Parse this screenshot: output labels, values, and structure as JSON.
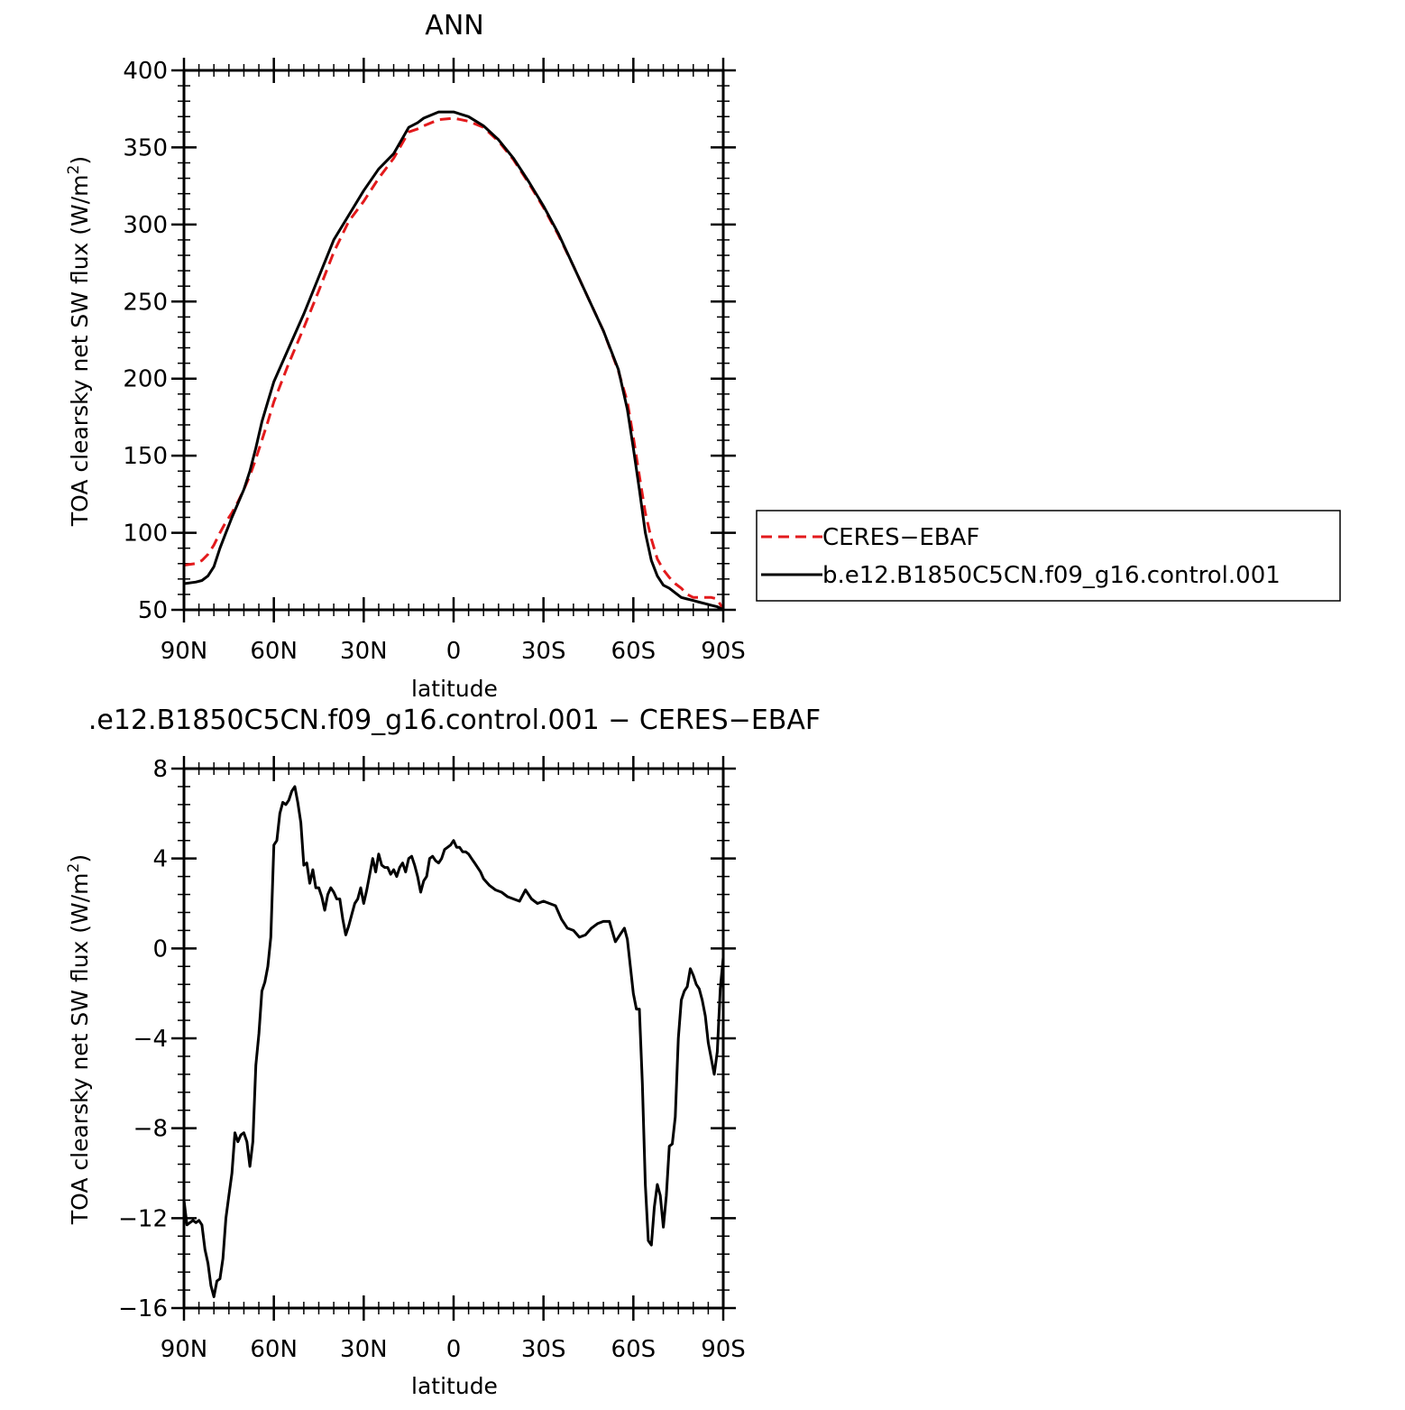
{
  "top_title": "ANN",
  "bottom_title": ".e12.B1850C5CN.f09_g16.control.001 − CERES−EBAF",
  "colors": {
    "ceres": "#e31a1c",
    "model": "#000000",
    "axis": "#000000"
  },
  "chart_data": [
    {
      "type": "line",
      "title": "ANN",
      "xlabel": "latitude",
      "ylabel": "TOA clearsky net SW flux (W/m²)",
      "ylabel_parts": [
        "TOA clearsky net SW flux (W/m",
        "2",
        ")"
      ],
      "xlim": [
        90,
        -90
      ],
      "ylim": [
        50,
        400
      ],
      "x_ticks": [
        90,
        60,
        30,
        0,
        -30,
        -60,
        -90
      ],
      "x_tick_labels": [
        "90N",
        "60N",
        "30N",
        "0",
        "30S",
        "60S",
        "90S"
      ],
      "y_ticks": [
        50,
        100,
        150,
        200,
        250,
        300,
        350,
        400
      ],
      "y_tick_labels": [
        "50",
        "100",
        "150",
        "200",
        "250",
        "300",
        "350",
        "400"
      ],
      "legend": {
        "position": "right",
        "entries": [
          "CERES−EBAF",
          "b.e12.B1850C5CN.f09_g16.control.001"
        ]
      },
      "series": [
        {
          "name": "CERES−EBAF",
          "style": "dashed",
          "x": [
            90,
            86,
            84,
            82,
            80,
            78,
            76,
            74,
            72,
            70,
            68,
            66,
            64,
            62,
            60,
            55,
            50,
            45,
            40,
            35,
            30,
            25,
            20,
            15,
            12,
            10,
            5,
            0,
            -5,
            -10,
            -15,
            -20,
            -25,
            -30,
            -35,
            -40,
            -45,
            -50,
            -55,
            -58,
            -60,
            -62,
            -64,
            -66,
            -68,
            -70,
            -72,
            -74,
            -76,
            -78,
            -80,
            -82,
            -84,
            -86,
            -88,
            -90
          ],
          "y": [
            79,
            80,
            82,
            86,
            92,
            100,
            107,
            113,
            120,
            128,
            137,
            148,
            160,
            172,
            185,
            210,
            233,
            257,
            282,
            302,
            315,
            330,
            343,
            360,
            362,
            364,
            368,
            369,
            367,
            363,
            354,
            342,
            327,
            311,
            293,
            273,
            252,
            231,
            205,
            185,
            162,
            137,
            113,
            96,
            83,
            76,
            71,
            67,
            64,
            60,
            58,
            58,
            58,
            58,
            57,
            50
          ]
        },
        {
          "name": "b.e12.B1850C5CN.f09_g16.control.001",
          "style": "solid",
          "x": [
            90,
            86,
            84,
            82,
            80,
            78,
            76,
            74,
            72,
            70,
            68,
            66,
            64,
            62,
            60,
            55,
            50,
            45,
            40,
            35,
            30,
            25,
            20,
            15,
            12,
            10,
            5,
            0,
            -5,
            -10,
            -15,
            -20,
            -25,
            -30,
            -35,
            -40,
            -45,
            -50,
            -55,
            -58,
            -60,
            -62,
            -64,
            -66,
            -68,
            -70,
            -72,
            -74,
            -76,
            -78,
            -80,
            -82,
            -84,
            -86,
            -88,
            -90
          ],
          "y": [
            67,
            68,
            69,
            72,
            78,
            90,
            100,
            110,
            119,
            128,
            140,
            155,
            172,
            185,
            198,
            220,
            242,
            266,
            290,
            306,
            322,
            336,
            346,
            363,
            366,
            369,
            373,
            373,
            370,
            364,
            355,
            343,
            328,
            312,
            294,
            273,
            252,
            231,
            206,
            180,
            155,
            128,
            100,
            82,
            72,
            66,
            64,
            61,
            58,
            57,
            56,
            55,
            54,
            53,
            52,
            50
          ]
        }
      ]
    },
    {
      "type": "line",
      "title": ".e12.B1850C5CN.f09_g16.control.001 − CERES−EBAF",
      "xlabel": "latitude",
      "ylabel": "TOA clearsky net SW flux (W/m²)",
      "ylabel_parts": [
        "TOA clearsky net SW flux (W/m",
        "2",
        ")"
      ],
      "xlim": [
        90,
        -90
      ],
      "ylim": [
        -16,
        8
      ],
      "x_ticks": [
        90,
        60,
        30,
        0,
        -30,
        -60,
        -90
      ],
      "x_tick_labels": [
        "90N",
        "60N",
        "30N",
        "0",
        "30S",
        "60S",
        "90S"
      ],
      "y_ticks": [
        -16,
        -12,
        -8,
        -4,
        0,
        4,
        8
      ],
      "y_tick_labels": [
        "−16",
        "−12",
        "−8",
        "−4",
        "0",
        "4",
        "8"
      ],
      "series": [
        {
          "name": "b.e12.B1850C5CN.f09_g16.control.001 − CERES−EBAF",
          "style": "solid",
          "x": [
            90,
            89,
            88,
            87,
            86,
            85,
            84,
            83,
            82,
            81,
            80,
            79,
            78,
            77,
            76,
            75,
            74,
            73,
            72,
            71,
            70,
            69,
            68,
            67,
            66,
            65,
            64,
            63,
            62,
            61,
            60,
            59,
            58,
            57,
            56,
            55,
            54,
            53,
            52,
            51,
            50,
            49,
            48,
            47,
            46,
            45,
            44,
            43,
            42,
            41,
            40,
            39,
            38,
            37,
            36,
            35,
            34,
            33,
            32,
            31,
            30,
            29,
            28,
            27,
            26,
            25,
            24,
            23,
            22,
            21,
            20,
            19,
            18,
            17,
            16,
            15,
            14,
            13,
            12,
            11,
            10,
            9,
            8,
            7,
            6,
            5,
            4,
            3,
            2,
            1,
            0,
            -1,
            -2,
            -3,
            -4,
            -5,
            -6,
            -7,
            -8,
            -9,
            -10,
            -12,
            -14,
            -16,
            -18,
            -20,
            -22,
            -24,
            -26,
            -28,
            -30,
            -32,
            -34,
            -36,
            -38,
            -40,
            -42,
            -44,
            -46,
            -48,
            -50,
            -51,
            -52,
            -54,
            -55,
            -56,
            -57,
            -58,
            -59,
            -60,
            -61,
            -62,
            -63,
            -64,
            -65,
            -66,
            -67,
            -68,
            -69,
            -70,
            -71,
            -72,
            -73,
            -74,
            -75,
            -76,
            -77,
            -78,
            -79,
            -80,
            -81,
            -82,
            -83,
            -84,
            -85,
            -86,
            -87,
            -88,
            -89,
            -90
          ],
          "y": [
            -11.2,
            -12.3,
            -12.2,
            -12.1,
            -12.2,
            -12.1,
            -12.3,
            -13.4,
            -14.0,
            -15.0,
            -15.5,
            -14.8,
            -14.7,
            -13.8,
            -12.0,
            -11.0,
            -10.0,
            -8.2,
            -8.6,
            -8.3,
            -8.2,
            -8.6,
            -9.7,
            -8.6,
            -5.2,
            -3.8,
            -1.9,
            -1.5,
            -0.8,
            0.5,
            4.6,
            4.8,
            6.0,
            6.5,
            6.4,
            6.6,
            7.0,
            7.2,
            6.5,
            5.6,
            3.7,
            3.8,
            2.9,
            3.5,
            2.7,
            2.7,
            2.3,
            1.7,
            2.4,
            2.7,
            2.5,
            2.2,
            2.2,
            1.3,
            0.6,
            1.0,
            1.5,
            2.0,
            2.2,
            2.7,
            2.0,
            2.6,
            3.3,
            4.0,
            3.4,
            4.2,
            3.7,
            3.6,
            3.6,
            3.3,
            3.5,
            3.2,
            3.6,
            3.8,
            3.4,
            4.0,
            4.1,
            3.7,
            3.2,
            2.5,
            3.0,
            3.2,
            4.0,
            4.1,
            3.9,
            3.8,
            4.0,
            4.4,
            4.5,
            4.6,
            4.8,
            4.5,
            4.5,
            4.3,
            4.3,
            4.2,
            4.0,
            3.8,
            3.6,
            3.4,
            3.1,
            2.8,
            2.6,
            2.5,
            2.3,
            2.2,
            2.1,
            2.6,
            2.2,
            2.0,
            2.1,
            2.0,
            1.9,
            1.3,
            0.9,
            0.8,
            0.5,
            0.6,
            0.9,
            1.1,
            1.2,
            1.2,
            1.2,
            0.3,
            0.5,
            0.7,
            0.9,
            0.4,
            -0.8,
            -2.0,
            -2.7,
            -2.7,
            -6.0,
            -10.5,
            -13.0,
            -13.2,
            -11.5,
            -10.5,
            -11.0,
            -12.4,
            -11.0,
            -8.8,
            -8.7,
            -7.5,
            -4.0,
            -2.3,
            -1.9,
            -1.7,
            -0.9,
            -1.2,
            -1.6,
            -1.8,
            -2.3,
            -3.0,
            -4.2,
            -4.9,
            -5.6,
            -4.6,
            -1.8,
            -0.4
          ]
        }
      ]
    }
  ]
}
